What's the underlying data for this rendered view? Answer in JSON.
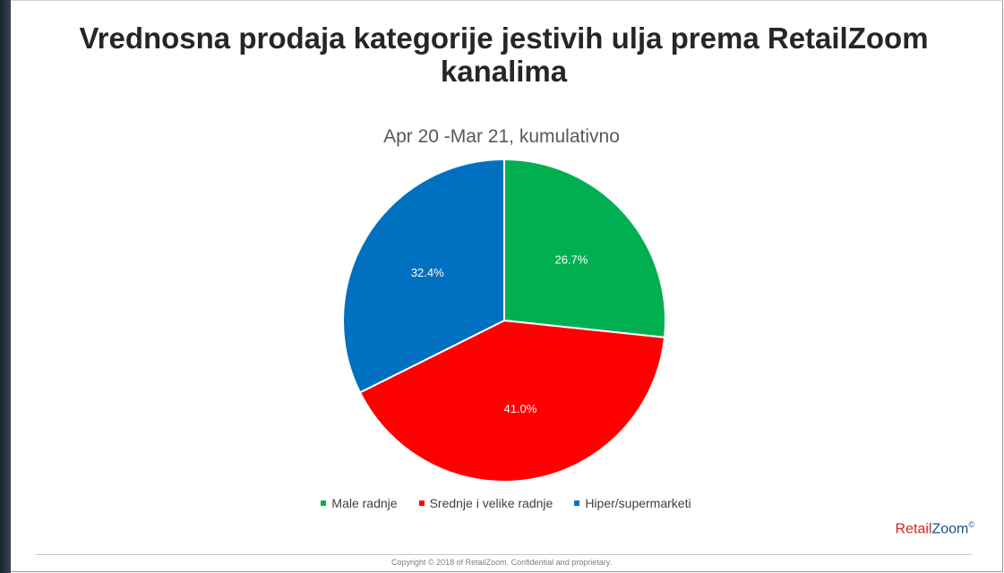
{
  "chart_data": {
    "type": "pie",
    "title": "Vrednosna prodaja kategorije jestivih ulja prema RetailZoom kanalima",
    "subtitle": "Apr 20 -Mar 21, kumulativno",
    "legend_position": "bottom",
    "slices": [
      {
        "name": "Male radnje",
        "value": 26.7,
        "label": "26.7%",
        "color": "#00b050"
      },
      {
        "name": "Srednje i velike radnje",
        "value": 41.0,
        "label": "41.0%",
        "color": "#ff0000"
      },
      {
        "name": "Hiper/supermarketi",
        "value": 32.4,
        "label": "32.4%",
        "color": "#0070c0"
      }
    ]
  },
  "brand": {
    "retail": "Retail",
    "zoom": "Zoom",
    "mark": "©"
  },
  "footer": {
    "copyright": "Copyright © 2018 of RetailZoom. Confidential and proprietary."
  }
}
